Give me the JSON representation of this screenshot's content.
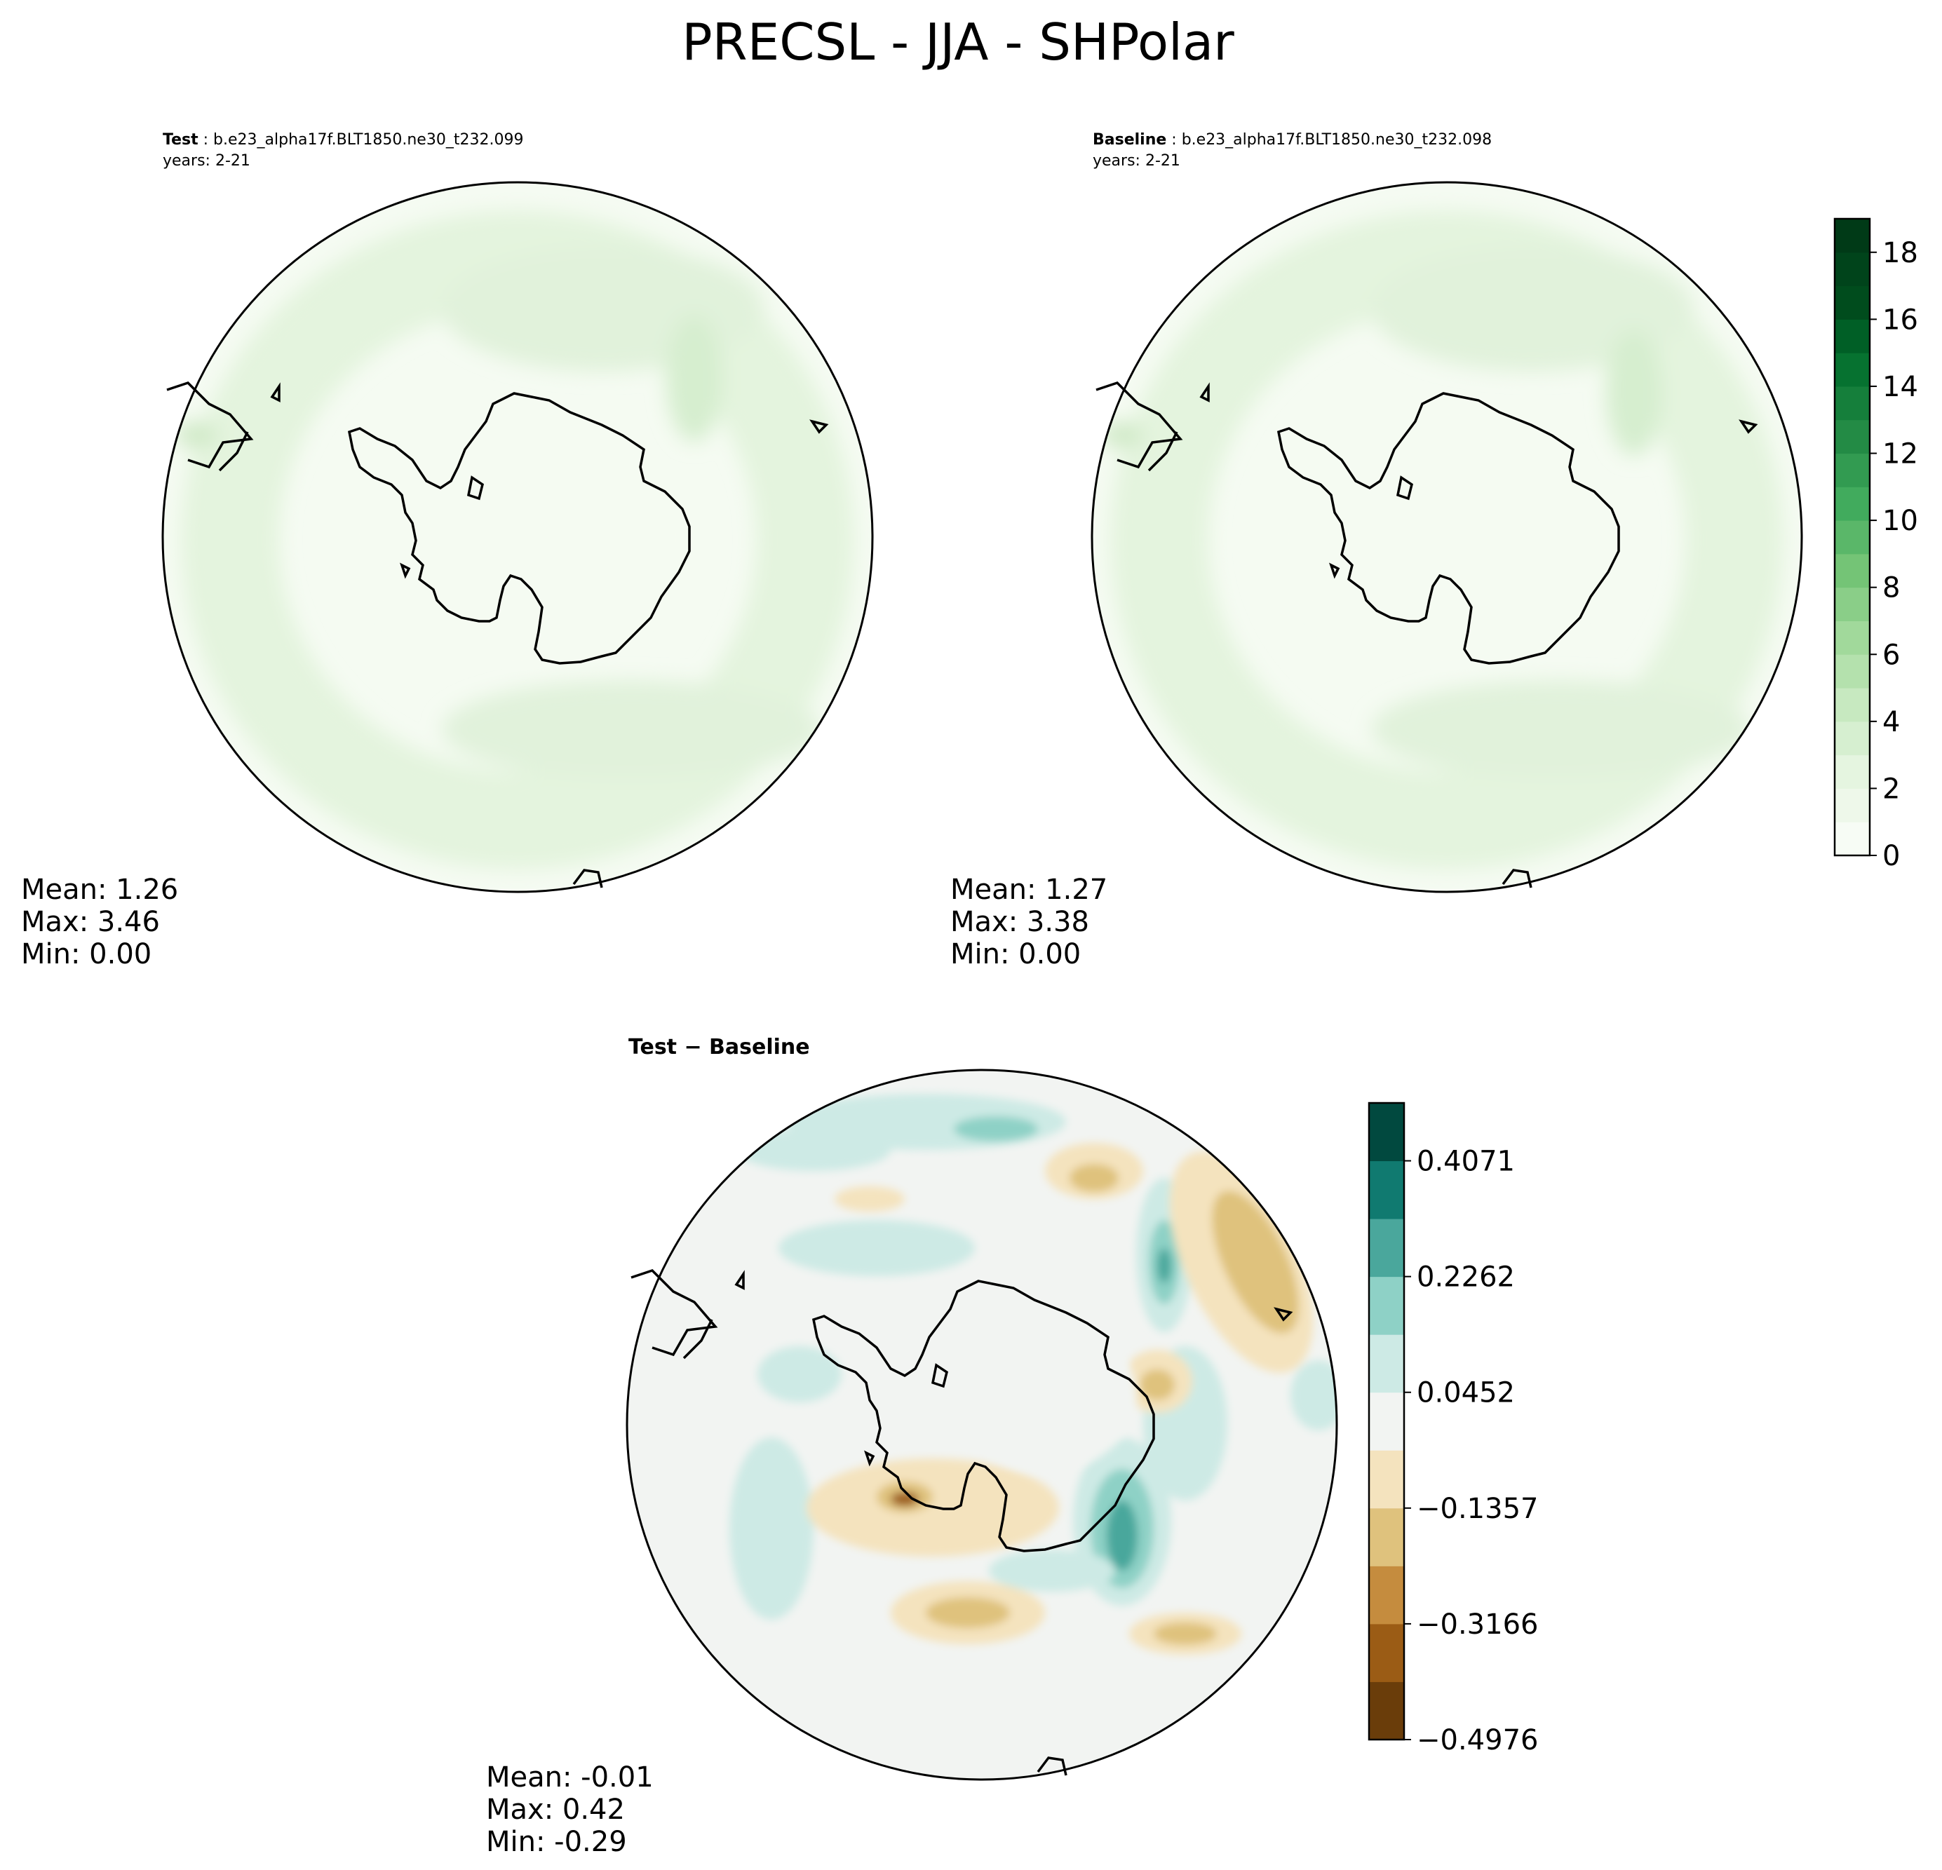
{
  "chart_data": {
    "type": "heatmap",
    "title": "PRECSL - JJA - SHPolar",
    "map_projection": "south-polar stereographic",
    "panels": [
      {
        "id": "test",
        "label": "Test",
        "case": " : b.e23_alpha17f.BLT1850.ne30_t232.099",
        "years": "years: 2-21",
        "stats": {
          "mean": "Mean:  1.26",
          "max": "Max:  3.46",
          "min": "Min:  0.00"
        },
        "colormap": "Greens"
      },
      {
        "id": "baseline",
        "label": "Baseline",
        "case": " : b.e23_alpha17f.BLT1850.ne30_t232.098",
        "years": "years: 2-21",
        "stats": {
          "mean": "Mean:  1.27",
          "max": "Max:  3.38",
          "min": "Min:  0.00"
        },
        "colormap": "Greens"
      },
      {
        "id": "diff",
        "label": "Test − Baseline",
        "stats": {
          "mean": "Mean: -0.01",
          "max": "Max:  0.42",
          "min": "Min: -0.29"
        },
        "colormap": "BrBG"
      }
    ],
    "colorbars": [
      {
        "for": "test-baseline",
        "range": [
          0,
          19
        ],
        "levels": 19,
        "ticks": [
          "0",
          "2",
          "4",
          "6",
          "8",
          "10",
          "12",
          "14",
          "16",
          "18"
        ],
        "colors": [
          "#f7fcf5",
          "#eef8ea",
          "#e5f5e0",
          "#d6efd0",
          "#c7e9c0",
          "#b4e1ad",
          "#a1d99b",
          "#8ace88",
          "#74c476",
          "#5ab769",
          "#41ab5d",
          "#329b51",
          "#238b45",
          "#157f3b",
          "#067230",
          "#005f26",
          "#004c1d",
          "#00441b",
          "#003a17"
        ]
      },
      {
        "for": "diff",
        "range": [
          -0.4976,
          0.4976
        ],
        "ticks": [
          "−0.4976",
          "−0.3166",
          "−0.1357",
          "0.0452",
          "0.2262",
          "0.4071"
        ],
        "colors": [
          "#6a3d0a",
          "#9b5c15",
          "#c58c3e",
          "#dfc27d",
          "#f4e3be",
          "#f2f4f2",
          "#cdeae5",
          "#8ed1c6",
          "#4aa79c",
          "#107a70",
          "#01493f"
        ]
      }
    ]
  }
}
